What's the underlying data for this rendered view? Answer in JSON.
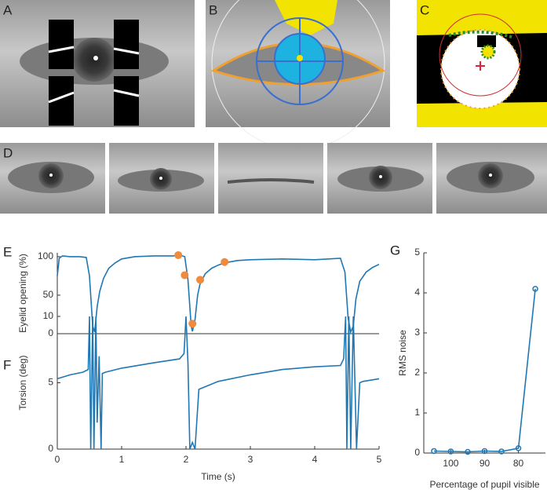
{
  "panel_labels": [
    "A",
    "B",
    "C",
    "D",
    "E",
    "F",
    "G"
  ],
  "chart_data": [
    {
      "type": "line",
      "ylabel": "Eyelid opening (%)",
      "xlim": [
        0,
        5
      ],
      "ylim": [
        0,
        105
      ],
      "yticks": [
        0,
        50,
        100
      ],
      "x": [
        0,
        0.03,
        0.08,
        0.2,
        0.35,
        0.45,
        0.5,
        0.55,
        0.58,
        0.62,
        0.66,
        0.72,
        0.8,
        0.9,
        1.0,
        1.2,
        1.5,
        1.8,
        1.9,
        1.98,
        2.03,
        2.08,
        2.1,
        2.14,
        2.18,
        2.22,
        2.3,
        2.4,
        2.5,
        2.6,
        2.8,
        3.0,
        3.5,
        4.0,
        4.4,
        4.47,
        4.52,
        4.56,
        4.6,
        4.64,
        4.7,
        4.8,
        4.9,
        5.0
      ],
      "series": [
        {
          "color": "#1f77b4",
          "values": [
            75,
            98,
            101,
            100,
            100,
            99,
            75,
            10,
            2,
            35,
            55,
            72,
            85,
            92,
            97,
            100,
            101,
            101,
            102,
            100,
            70,
            10,
            3,
            18,
            50,
            65,
            78,
            85,
            89,
            92,
            95,
            96,
            97,
            96,
            98,
            80,
            20,
            2,
            10,
            45,
            68,
            80,
            86,
            90
          ]
        }
      ],
      "markers": {
        "color": "#f08a3c",
        "x": [
          1.88,
          1.98,
          2.1,
          2.22,
          2.6
        ],
        "values": [
          102,
          76,
          13,
          70,
          93
        ]
      }
    },
    {
      "type": "line",
      "ylabel": "Torsion (deg)",
      "xlabel": "Time (s)",
      "xlim": [
        0,
        5
      ],
      "xticks": [
        0,
        1,
        2,
        3,
        4,
        5
      ],
      "ylim": [
        0,
        10
      ],
      "yticks": [
        0,
        5,
        10
      ],
      "x": [
        0,
        0.2,
        0.4,
        0.48,
        0.5,
        0.52,
        0.55,
        0.57,
        0.6,
        0.62,
        0.65,
        0.68,
        0.7,
        0.75,
        1.0,
        1.5,
        1.9,
        1.97,
        2.0,
        2.03,
        2.06,
        2.1,
        2.14,
        2.2,
        2.5,
        3.0,
        3.5,
        4.0,
        4.4,
        4.45,
        4.48,
        4.5,
        4.53,
        4.56,
        4.6,
        4.65,
        4.7,
        4.75,
        5.0
      ],
      "series": [
        {
          "color": "#1f77b4",
          "values": [
            5.3,
            5.6,
            5.8,
            6.0,
            10,
            0,
            10,
            0,
            10,
            2,
            7,
            0,
            5.7,
            5.8,
            6.1,
            6.5,
            6.8,
            7.2,
            10,
            6.5,
            0,
            0.5,
            0,
            4.5,
            5.1,
            5.6,
            6.0,
            6.2,
            6.3,
            6.8,
            10,
            0,
            10,
            0,
            10,
            0,
            5.0,
            5.1,
            5.3
          ]
        }
      ]
    },
    {
      "type": "line",
      "ylabel": "RMS noise",
      "xlabel": "Percentage of pupil visible",
      "xlim": [
        108,
        72
      ],
      "xticks": [
        100,
        90,
        80
      ],
      "ylim": [
        0,
        5
      ],
      "yticks": [
        0,
        1,
        2,
        3,
        4,
        5
      ],
      "x": [
        105,
        100,
        95,
        90,
        85,
        80,
        75
      ],
      "series": [
        {
          "color": "#1f77b4",
          "values": [
            0.05,
            0.04,
            0.03,
            0.05,
            0.04,
            0.12,
            4.1
          ]
        }
      ]
    }
  ]
}
